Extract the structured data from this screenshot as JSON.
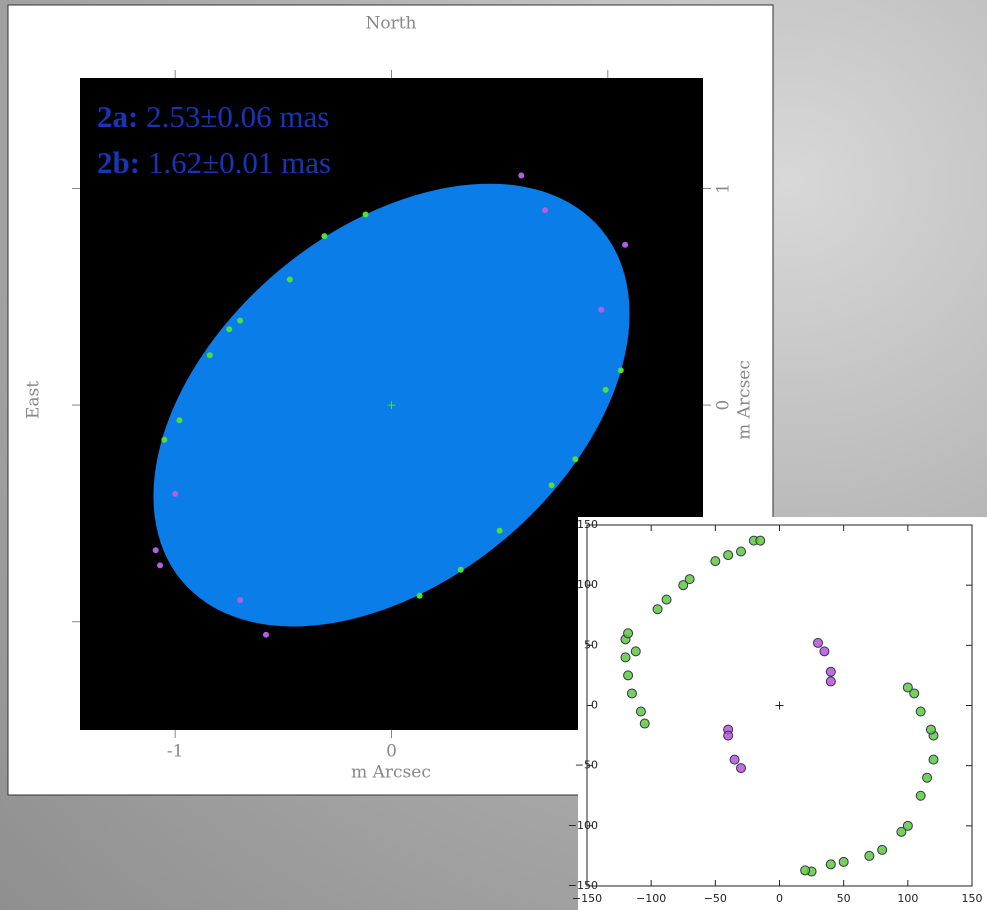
{
  "chart_data": [
    {
      "type": "scatter",
      "top_label": "North",
      "left_label": "East",
      "x_label": "m Arcsec",
      "y_label": "m Arcsec",
      "annotations": [
        {
          "label": "2a:",
          "text": "2.53±0.06 mas"
        },
        {
          "label": "2b:",
          "text": "1.62±0.01 mas"
        }
      ],
      "ellipse": {
        "major": 2.53,
        "minor": 1.62,
        "angle": 40,
        "color": "#0a7de8"
      },
      "xlim": [
        -1.44,
        1.44
      ],
      "ylim": [
        -1.5,
        1.51
      ],
      "xticks": [
        -1,
        0,
        1
      ],
      "yticks": [
        -1,
        0,
        1
      ],
      "xtick_labels_shown": [
        -1,
        0
      ],
      "ytick_labels_shown": [
        0,
        1
      ],
      "series": [
        {
          "color": "#4ee03a",
          "x": [
            -0.12,
            -0.31,
            -0.47,
            -0.7,
            -0.84,
            -0.98,
            -1.05,
            0.13,
            0.32,
            0.5,
            0.74,
            0.85,
            0.99,
            1.06,
            -0.75
          ],
          "y": [
            0.88,
            0.78,
            0.58,
            0.39,
            0.23,
            -0.07,
            -0.16,
            -0.88,
            -0.76,
            -0.58,
            -0.37,
            -0.25,
            0.07,
            0.16,
            0.35
          ]
        },
        {
          "color": "#b060e0",
          "x": [
            0.6,
            0.71,
            1.08,
            0.97,
            -1.0,
            -1.07,
            -0.7,
            -0.58,
            -1.09
          ],
          "y": [
            1.06,
            0.9,
            0.74,
            0.44,
            -0.41,
            -0.74,
            -0.9,
            -1.06,
            -0.67
          ]
        }
      ]
    },
    {
      "type": "scatter",
      "xlim": [
        -150,
        150
      ],
      "ylim": [
        -150,
        150
      ],
      "xticks": [
        {
          "value": -150,
          "label": "−150"
        },
        {
          "value": -100,
          "label": "−100"
        },
        {
          "value": -50,
          "label": "−50"
        },
        0,
        50,
        100,
        150
      ],
      "yticks": [
        {
          "value": -150,
          "label": "−150"
        },
        {
          "value": -100,
          "label": "−100"
        },
        {
          "value": -50,
          "label": "−50"
        },
        0,
        50,
        100,
        150
      ],
      "series": [
        {
          "color": "#5ec93a",
          "x": [
            -120,
            -120,
            -118,
            -115,
            -108,
            -105,
            -95,
            -88,
            -75,
            -70,
            -50,
            -40,
            -30,
            -20,
            -15,
            -118,
            -112,
            120,
            120,
            115,
            110,
            100,
            95,
            80,
            70,
            50,
            40,
            25,
            20,
            100,
            105,
            110,
            118
          ],
          "y": [
            55,
            40,
            25,
            10,
            -5,
            -15,
            80,
            88,
            100,
            105,
            120,
            125,
            128,
            137,
            137,
            60,
            45,
            -25,
            -45,
            -60,
            -75,
            -100,
            -105,
            -120,
            -125,
            -130,
            -132,
            -138,
            -137,
            15,
            10,
            -5,
            -20
          ]
        },
        {
          "color": "#b455d6",
          "x": [
            30,
            35,
            40,
            40,
            -40,
            -40,
            -35,
            -30
          ],
          "y": [
            52,
            45,
            28,
            20,
            -20,
            -25,
            -45,
            -52
          ]
        }
      ]
    }
  ]
}
